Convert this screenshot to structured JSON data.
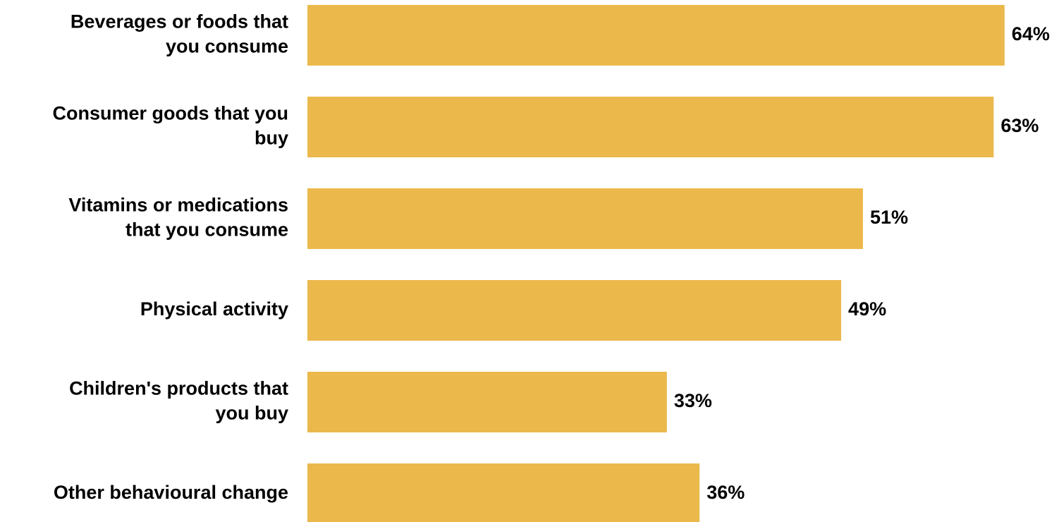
{
  "chart_data": {
    "type": "bar",
    "orientation": "horizontal",
    "categories": [
      [
        "Beverages or foods that",
        "you consume"
      ],
      [
        "Consumer goods that you",
        "buy"
      ],
      [
        "Vitamins or medications",
        "that you consume"
      ],
      [
        "Physical activity"
      ],
      [
        "Children's products that",
        "you buy"
      ],
      [
        "Other behavioural change"
      ]
    ],
    "values": [
      64,
      63,
      51,
      49,
      33,
      36
    ],
    "value_labels": [
      "64%",
      "63%",
      "51%",
      "49%",
      "33%",
      "36%"
    ],
    "unit": "%",
    "bar_color": "#EBB84B",
    "grid": false,
    "legend": false
  }
}
